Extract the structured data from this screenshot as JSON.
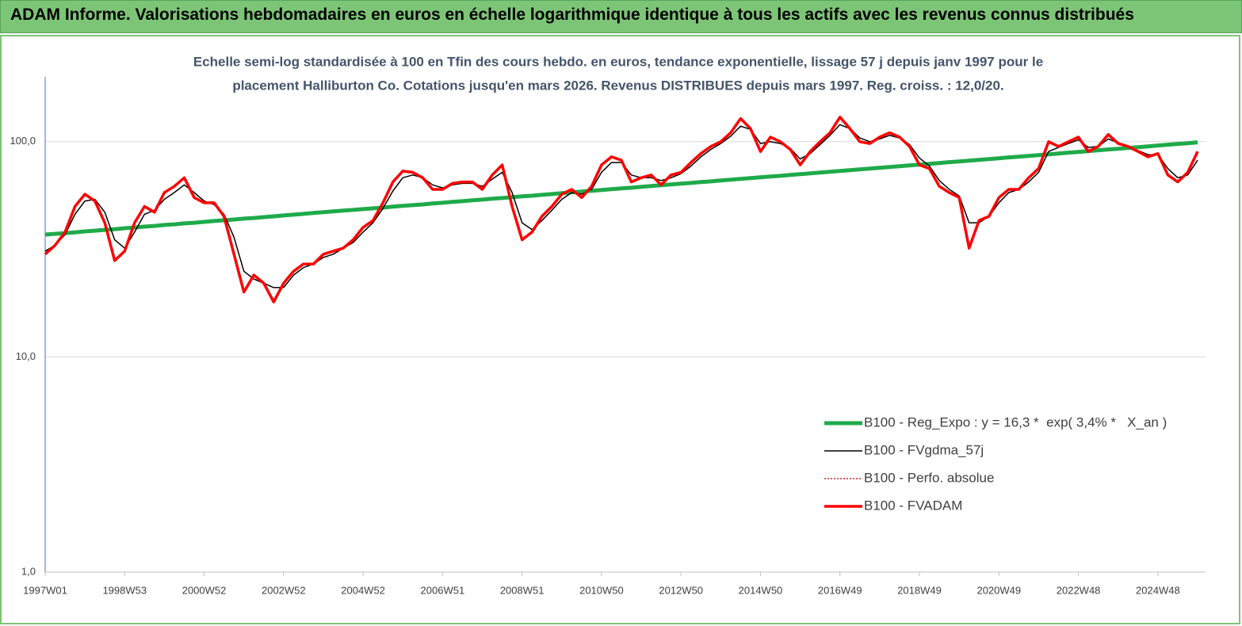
{
  "header": {
    "title": "ADAM Informe. Valorisations hebdomadaires en euros en échelle logarithmique identique à tous les actifs avec les revenus connus distribués"
  },
  "chart_data": {
    "type": "line",
    "subtitle": [
      "Echelle semi-log standardisée à 100 en Tfin des cours hebdo. en euros, tendance exponentielle, lissage 57 j depuis janv 1997 pour le",
      "placement Halliburton Co. Cotations jusqu'en mars 2026. Revenus DISTRIBUES depuis mars 1997. Reg. croiss. : 12,0/20."
    ],
    "log_scale": true,
    "grid": true,
    "legend": "lower right",
    "ylim": [
      1,
      200
    ],
    "yticks": [
      {
        "value": 1,
        "label": "1,0"
      },
      {
        "value": 10,
        "label": "10,0"
      },
      {
        "value": 100,
        "label": "100,0"
      }
    ],
    "categories": [
      "1997W01",
      null,
      null,
      null,
      null,
      null,
      null,
      null,
      "1998W53",
      null,
      null,
      null,
      null,
      null,
      null,
      null,
      "2000W52",
      null,
      null,
      null,
      null,
      null,
      null,
      null,
      "2002W52",
      null,
      null,
      null,
      null,
      null,
      null,
      null,
      "2004W52",
      null,
      null,
      null,
      null,
      null,
      null,
      null,
      "2006W51",
      null,
      null,
      null,
      null,
      null,
      null,
      null,
      "2008W51",
      null,
      null,
      null,
      null,
      null,
      null,
      null,
      "2010W50",
      null,
      null,
      null,
      null,
      null,
      null,
      null,
      "2012W50",
      null,
      null,
      null,
      null,
      null,
      null,
      null,
      "2014W50",
      null,
      null,
      null,
      null,
      null,
      null,
      null,
      "2016W49",
      null,
      null,
      null,
      null,
      null,
      null,
      null,
      "2018W49",
      null,
      null,
      null,
      null,
      null,
      null,
      null,
      "2020W49",
      null,
      null,
      null,
      null,
      null,
      null,
      null,
      "2022W48",
      null,
      null,
      null,
      null,
      null,
      null,
      null,
      "2024W48",
      null,
      null,
      null,
      null
    ],
    "series": [
      {
        "name": "B100 - Reg_Expo : y = 16,3 *  exp( 3,4% *   X_an )",
        "color": "#1faa4a",
        "width": 5,
        "dash": "solid",
        "values": [
          37.0,
          37.3,
          37.6,
          37.9,
          38.3,
          38.6,
          38.9,
          39.2,
          39.6,
          39.9,
          40.3,
          40.6,
          41.0,
          41.3,
          41.7,
          42.0,
          42.4,
          42.8,
          43.1,
          43.5,
          43.9,
          44.2,
          44.6,
          45.0,
          45.4,
          45.8,
          46.2,
          46.6,
          47.0,
          47.4,
          47.8,
          48.2,
          48.6,
          49.0,
          49.4,
          49.9,
          50.3,
          50.7,
          51.1,
          51.6,
          52.0,
          52.5,
          52.9,
          53.4,
          53.8,
          54.3,
          54.7,
          55.2,
          55.7,
          56.1,
          56.6,
          57.1,
          57.6,
          58.1,
          58.6,
          59.1,
          59.6,
          60.1,
          60.6,
          61.1,
          61.7,
          62.2,
          62.7,
          63.3,
          63.8,
          64.3,
          64.9,
          65.4,
          66.0,
          66.6,
          67.1,
          67.7,
          68.3,
          68.9,
          69.4,
          70.0,
          70.6,
          71.2,
          71.9,
          72.5,
          73.1,
          73.7,
          74.3,
          75.0,
          75.6,
          76.3,
          76.9,
          77.6,
          78.2,
          78.9,
          79.6,
          80.3,
          80.9,
          81.6,
          82.3,
          83.0,
          83.7,
          84.5,
          85.2,
          85.9,
          86.6,
          87.4,
          88.1,
          88.9,
          89.6,
          90.4,
          91.2,
          92.0,
          92.7,
          93.5,
          94.3,
          95.1,
          96.0,
          96.8,
          97.6,
          98.4,
          99.3
        ]
      },
      {
        "name": "B100 - FVgdma_57j",
        "color": "#000000",
        "width": 1.5,
        "dash": "solid",
        "values": [
          31,
          33,
          37,
          46,
          53,
          54,
          47,
          35,
          32,
          38,
          46,
          48,
          54,
          58,
          63,
          58,
          53,
          51,
          46,
          36,
          25,
          23,
          22,
          21,
          21,
          24,
          26,
          27,
          29,
          30,
          32,
          34,
          38,
          42,
          49,
          59,
          68,
          70,
          68,
          63,
          61,
          63,
          64,
          64,
          62,
          67,
          72,
          58,
          42,
          39,
          43,
          48,
          54,
          58,
          57,
          60,
          72,
          80,
          80,
          70,
          68,
          68,
          66,
          68,
          71,
          77,
          85,
          92,
          98,
          106,
          118,
          114,
          98,
          100,
          98,
          93,
          83,
          88,
          97,
          107,
          120,
          115,
          104,
          100,
          103,
          107,
          104,
          97,
          84,
          77,
          66,
          60,
          56,
          42,
          42,
          45,
          52,
          58,
          60,
          65,
          72,
          90,
          94,
          98,
          102,
          94,
          95,
          103,
          99,
          95,
          91,
          87,
          87,
          75,
          68,
          70,
          82
        ]
      },
      {
        "name": "B100 - Perfo. absolue",
        "color": "#e41a1c",
        "width": 1.5,
        "dash": "dotted",
        "values": [
          30,
          33,
          38,
          50,
          57,
          53,
          42,
          28,
          31,
          42,
          50,
          47,
          58,
          62,
          68,
          55,
          52,
          52,
          45,
          30,
          20,
          24,
          22,
          18,
          22,
          25,
          27,
          27,
          30,
          31,
          32,
          35,
          40,
          43,
          52,
          65,
          73,
          72,
          68,
          60,
          60,
          64,
          65,
          65,
          60,
          70,
          78,
          50,
          35,
          38,
          45,
          50,
          57,
          60,
          55,
          62,
          78,
          85,
          82,
          65,
          68,
          70,
          63,
          70,
          72,
          80,
          88,
          95,
          100,
          110,
          128,
          115,
          90,
          105,
          100,
          92,
          78,
          90,
          100,
          110,
          130,
          115,
          100,
          98,
          105,
          110,
          105,
          95,
          78,
          75,
          62,
          58,
          55,
          32,
          43,
          45,
          55,
          60,
          60,
          68,
          75,
          100,
          95,
          100,
          105,
          90,
          95,
          108,
          98,
          95,
          90,
          85,
          88,
          70,
          65,
          72,
          90
        ]
      },
      {
        "name": "B100 - FVADAM",
        "color": "#ff0000",
        "width": 3.5,
        "dash": "solid",
        "values": [
          30,
          33,
          38,
          50,
          57,
          53,
          42,
          28,
          31,
          42,
          50,
          47,
          58,
          62,
          68,
          55,
          52,
          52,
          45,
          30,
          20,
          24,
          22,
          18,
          22,
          25,
          27,
          27,
          30,
          31,
          32,
          35,
          40,
          43,
          52,
          65,
          73,
          72,
          68,
          60,
          60,
          64,
          65,
          65,
          60,
          70,
          78,
          50,
          35,
          38,
          45,
          50,
          57,
          60,
          55,
          62,
          78,
          85,
          82,
          65,
          68,
          70,
          63,
          70,
          72,
          80,
          88,
          95,
          100,
          110,
          128,
          115,
          90,
          105,
          100,
          92,
          78,
          90,
          100,
          110,
          130,
          115,
          100,
          98,
          105,
          110,
          105,
          95,
          78,
          75,
          62,
          58,
          55,
          32,
          43,
          45,
          55,
          60,
          60,
          68,
          75,
          100,
          95,
          100,
          105,
          90,
          95,
          108,
          98,
          95,
          90,
          85,
          88,
          70,
          65,
          72,
          90
        ]
      }
    ]
  }
}
